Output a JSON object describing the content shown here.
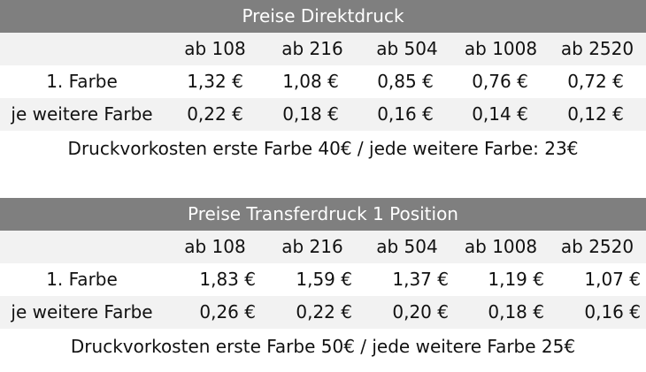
{
  "direktdruck": {
    "title": "Preise Direktdruck",
    "quantities": [
      "ab 108",
      "ab 216",
      "ab 504",
      "ab 1008",
      "ab 2520"
    ],
    "rows": [
      {
        "label": "1. Farbe",
        "prices": [
          "1,32 €",
          "1,08 €",
          "0,85 €",
          "0,76 €",
          "0,72 €"
        ]
      },
      {
        "label": "je weitere Farbe",
        "prices": [
          "0,22 €",
          "0,18 €",
          "0,16 €",
          "0,14 €",
          "0,12 €"
        ]
      }
    ],
    "note": "Druckvorkosten erste Farbe 40€ / jede weitere Farbe: 23€"
  },
  "transferdruck": {
    "title": "Preise Transferdruck 1 Position",
    "quantities": [
      "ab 108",
      "ab 216",
      "ab 504",
      "ab 1008",
      "ab 2520"
    ],
    "rows": [
      {
        "label": "1. Farbe",
        "prices": [
          "1,83 €",
          "1,59 €",
          "1,37 €",
          "1,19 €",
          "1,07 €"
        ]
      },
      {
        "label": "je weitere Farbe",
        "prices": [
          "0,26 €",
          "0,22 €",
          "0,20 €",
          "0,18 €",
          "0,16 €"
        ]
      }
    ],
    "note": "Druckvorkosten erste Farbe 50€ / jede weitere Farbe 25€"
  },
  "colors": {
    "title_bar_bg": "#7f7f7f",
    "title_bar_text": "#ffffff",
    "shaded_row_bg": "#f2f2f2",
    "plain_row_bg": "#ffffff",
    "text": "#111111"
  }
}
